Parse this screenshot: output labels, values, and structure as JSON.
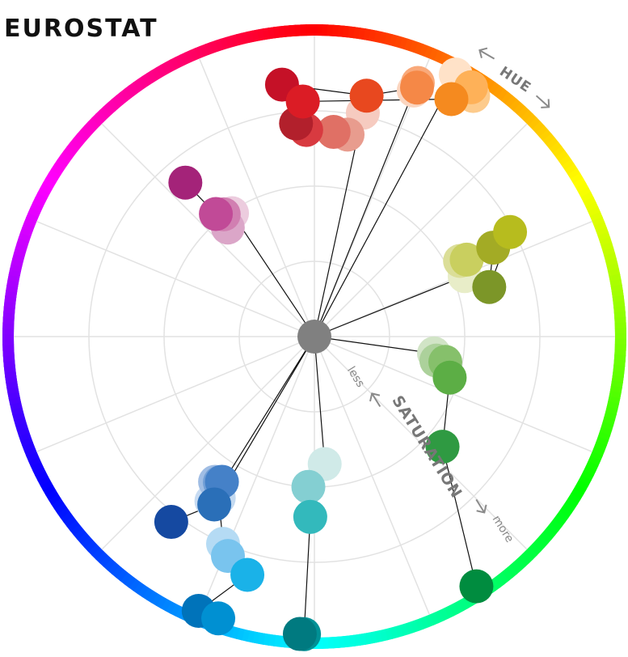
{
  "title": "EUROSTAT",
  "hue_label": "HUE",
  "saturation_label": "SATURATION",
  "less_label": "less",
  "more_label": "more",
  "chart_data": {
    "type": "scatter",
    "title": "EUROSTAT",
    "coordinate_system": "polar",
    "angle_axis": "HUE",
    "radius_axis": "SATURATION",
    "radius_range": [
      "less",
      "more"
    ],
    "grid": true,
    "center_color": "#808080",
    "palettes": [
      {
        "colors": [
          "#f6cbc0",
          "#e89c8e",
          "#e07065",
          "#d83a40",
          "#b2202c"
        ]
      },
      {
        "colors": [
          "#fbd5bf",
          "#f9a97a",
          "#f58847",
          "#e8481f",
          "#c51127"
        ]
      },
      {
        "colors": [
          "#ffe2c8",
          "#fdcb8c",
          "#feb158",
          "#f58a1f",
          "#db1c25"
        ]
      },
      {
        "colors": [
          "#e8edc8",
          "#dbde98",
          "#c9cf5f",
          "#a3ab25",
          "#7c9628",
          "#b7bc1e"
        ]
      },
      {
        "colors": [
          "#d1e4c6",
          "#acd19b",
          "#86c06b",
          "#5cae45",
          "#2f9a42",
          "#008c3f"
        ]
      },
      {
        "colors": [
          "#d0eae8",
          "#84cfd2",
          "#33b9bc",
          "#009196",
          "#007a80"
        ]
      },
      {
        "colors": [
          "#c3d9f0",
          "#b5dbf4",
          "#79c4ee",
          "#1ab2e8",
          "#0073ba",
          "#0090d2"
        ]
      },
      {
        "colors": [
          "#c7dbf2",
          "#a0bde4",
          "#729fd6",
          "#4581c8",
          "#2a6fb8",
          "#1549a1"
        ]
      },
      {
        "colors": [
          "#ecccde",
          "#dba6c8",
          "#d17fb1",
          "#c14a97",
          "#a42379"
        ]
      }
    ]
  }
}
